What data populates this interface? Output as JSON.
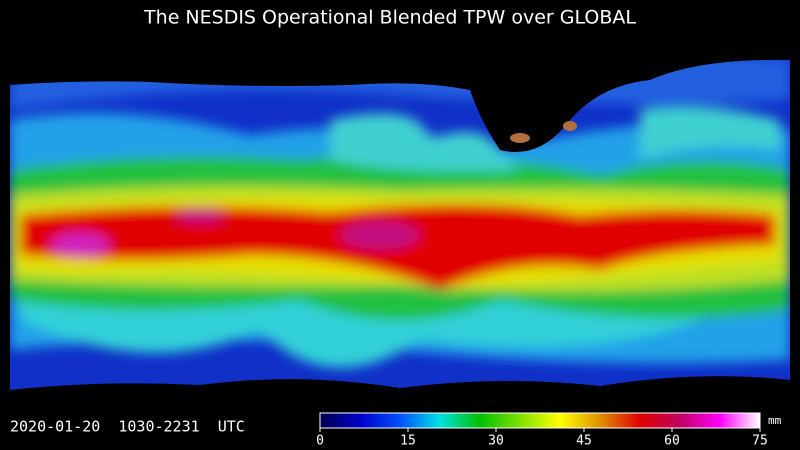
{
  "title": "The NESDIS Operational Blended TPW over GLOBAL",
  "timestamp": "2020-01-20  1030-2231  UTC",
  "colorbar": {
    "unit": "mm",
    "range": [
      0,
      75
    ],
    "ticks": [
      0,
      15,
      30,
      45,
      60,
      75
    ],
    "colors": [
      "#000050",
      "#0000c8",
      "#0050ff",
      "#00e0e0",
      "#00c000",
      "#80e000",
      "#ffff00",
      "#e09000",
      "#e00000",
      "#c00060",
      "#ff00ff",
      "#ffffff"
    ]
  }
}
